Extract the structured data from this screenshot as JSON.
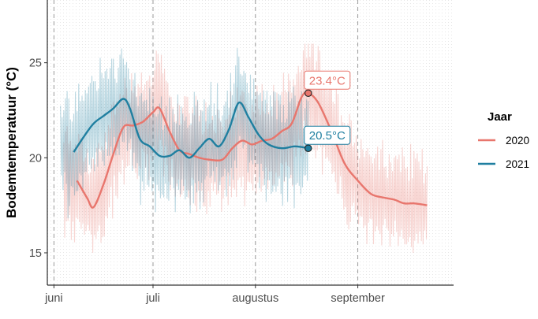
{
  "chart_data": {
    "type": "line",
    "ylabel": "Bodemtemperatuur (°C)",
    "xlabel": "",
    "xlim": [
      "2021-05-30",
      "2021-09-30"
    ],
    "ylim": [
      13.3,
      28.3
    ],
    "x_ticks": [
      {
        "date": "2021-06-01",
        "label": "juni"
      },
      {
        "date": "2021-07-01",
        "label": "juli"
      },
      {
        "date": "2021-08-01",
        "label": "augustus"
      },
      {
        "date": "2021-09-01",
        "label": "september"
      }
    ],
    "y_ticks": [
      {
        "value": 15,
        "label": "15"
      },
      {
        "value": 20,
        "label": "20"
      },
      {
        "value": 25,
        "label": "25"
      }
    ],
    "grid": "dashed vertical lines at month starts",
    "legend": {
      "title": "Jaar",
      "position": "right",
      "entries": [
        "2020",
        "2021"
      ]
    },
    "series": [
      {
        "name": "2020",
        "color": "#E8766D",
        "smoothed": [
          [
            "2021-06-08",
            18.8
          ],
          [
            "2021-06-11",
            17.9
          ],
          [
            "2021-06-13",
            17.4
          ],
          [
            "2021-06-16",
            18.6
          ],
          [
            "2021-06-19",
            20.2
          ],
          [
            "2021-06-22",
            21.6
          ],
          [
            "2021-06-25",
            21.7
          ],
          [
            "2021-06-28",
            21.9
          ],
          [
            "2021-07-01",
            22.4
          ],
          [
            "2021-07-03",
            22.6
          ],
          [
            "2021-07-06",
            21.4
          ],
          [
            "2021-07-09",
            20.4
          ],
          [
            "2021-07-12",
            20.2
          ],
          [
            "2021-07-15",
            20.0
          ],
          [
            "2021-07-18",
            19.9
          ],
          [
            "2021-07-22",
            19.9
          ],
          [
            "2021-07-25",
            20.5
          ],
          [
            "2021-07-28",
            20.9
          ],
          [
            "2021-07-31",
            20.7
          ],
          [
            "2021-08-03",
            20.9
          ],
          [
            "2021-08-06",
            21.0
          ],
          [
            "2021-08-09",
            21.4
          ],
          [
            "2021-08-12",
            21.8
          ],
          [
            "2021-08-15",
            23.2
          ],
          [
            "2021-08-17",
            23.4
          ],
          [
            "2021-08-20",
            22.9
          ],
          [
            "2021-08-24",
            21.4
          ],
          [
            "2021-08-28",
            19.7
          ],
          [
            "2021-09-01",
            18.8
          ],
          [
            "2021-09-05",
            18.1
          ],
          [
            "2021-09-09",
            17.9
          ],
          [
            "2021-09-12",
            17.8
          ],
          [
            "2021-09-15",
            17.6
          ],
          [
            "2021-09-18",
            17.6
          ],
          [
            "2021-09-22",
            17.5
          ]
        ],
        "raw_low": 15.0,
        "raw_high": 26.0,
        "last_label": "23.4°C",
        "last_value": 23.4,
        "last_date": "2021-08-17"
      },
      {
        "name": "2021",
        "color": "#1F7FA0",
        "smoothed": [
          [
            "2021-06-07",
            20.3
          ],
          [
            "2021-06-10",
            21.1
          ],
          [
            "2021-06-13",
            21.8
          ],
          [
            "2021-06-16",
            22.2
          ],
          [
            "2021-06-19",
            22.6
          ],
          [
            "2021-06-22",
            23.1
          ],
          [
            "2021-06-24",
            22.6
          ],
          [
            "2021-06-27",
            21.0
          ],
          [
            "2021-06-30",
            20.6
          ],
          [
            "2021-07-03",
            20.1
          ],
          [
            "2021-07-06",
            20.1
          ],
          [
            "2021-07-09",
            20.4
          ],
          [
            "2021-07-12",
            20.0
          ],
          [
            "2021-07-15",
            20.5
          ],
          [
            "2021-07-18",
            21.0
          ],
          [
            "2021-07-21",
            20.6
          ],
          [
            "2021-07-24",
            21.5
          ],
          [
            "2021-07-27",
            22.9
          ],
          [
            "2021-07-30",
            22.1
          ],
          [
            "2021-08-02",
            21.2
          ],
          [
            "2021-08-05",
            20.7
          ],
          [
            "2021-08-09",
            20.5
          ],
          [
            "2021-08-13",
            20.6
          ],
          [
            "2021-08-17",
            20.5
          ]
        ],
        "raw_low": 16.5,
        "raw_high": 28.0,
        "last_label": "20.5°C",
        "last_value": 20.5,
        "last_date": "2021-08-17"
      }
    ]
  }
}
